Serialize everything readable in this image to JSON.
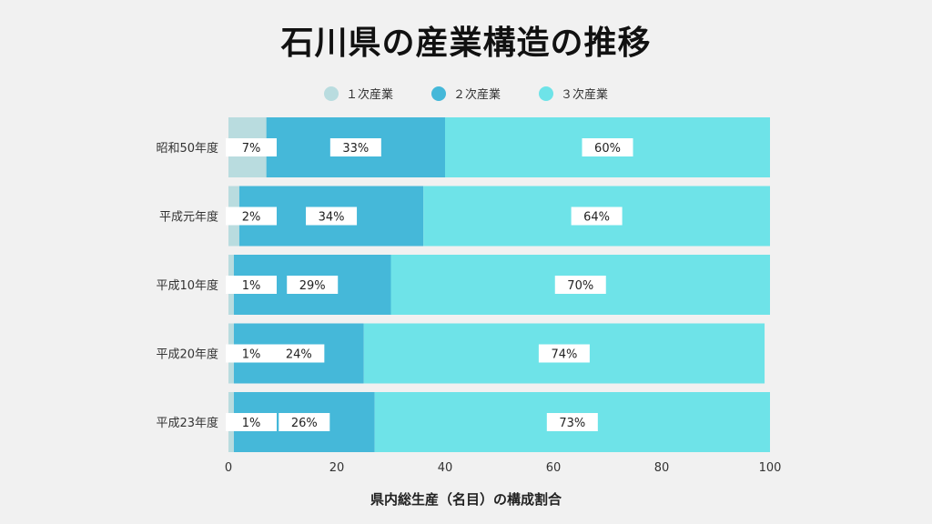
{
  "chart_data": {
    "type": "bar",
    "orientation": "horizontal",
    "stacked": true,
    "title": "石川県の産業構造の推移",
    "xlabel": "県内総生産（名目）の構成割合",
    "ylabel": "",
    "xlim": [
      0,
      100
    ],
    "xticks": [
      "0",
      "20",
      "40",
      "60",
      "80",
      "100"
    ],
    "categories": [
      "昭和50年度",
      "平成元年度",
      "平成10年度",
      "平成20年度",
      "平成23年度"
    ],
    "series": [
      {
        "name": "１次産業",
        "color": "#b9dcdf",
        "values": [
          7,
          2,
          1,
          1,
          1
        ],
        "labels": [
          "7%",
          "2%",
          "1%",
          "1%",
          "1%"
        ]
      },
      {
        "name": "２次産業",
        "color": "#45b8d9",
        "values": [
          33,
          34,
          29,
          24,
          26
        ],
        "labels": [
          "33%",
          "34%",
          "29%",
          "24%",
          "26%"
        ]
      },
      {
        "name": "３次産業",
        "color": "#6ee3e8",
        "values": [
          60,
          64,
          70,
          74,
          73
        ],
        "labels": [
          "60%",
          "64%",
          "70%",
          "74%",
          "73%"
        ]
      }
    ],
    "legend_position": "top-center",
    "grid": false
  }
}
